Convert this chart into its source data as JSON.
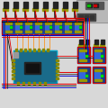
{
  "bg_color": "#d8d8d8",
  "arduino_color": "#1a6b8a",
  "relay_color": "#1a3a8a",
  "relay_border": "#cc0000",
  "solenoid_color": "#222222",
  "solenoid_base": "#999900",
  "wire_red": "#dd0000",
  "wire_blue": "#0000cc",
  "wire_black": "#111111",
  "wire_orange": "#ff8800",
  "wire_green": "#00aa00",
  "relay_row_bg": "#990000"
}
